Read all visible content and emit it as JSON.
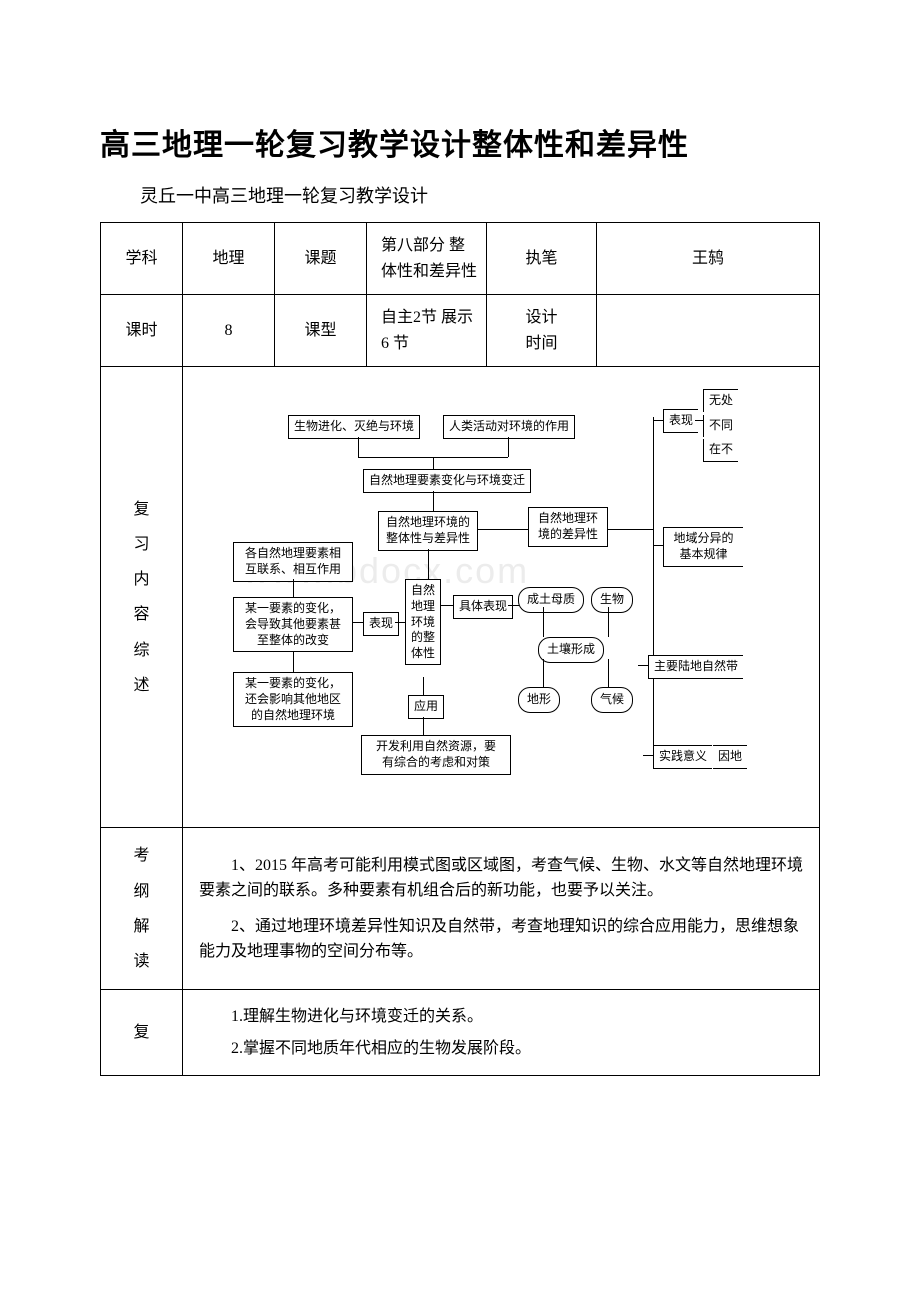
{
  "title": "高三地理一轮复习教学设计整体性和差异性",
  "subtitle": "灵丘一中高三地理一轮复习教学设计",
  "row1": {
    "c1": "学科",
    "c2": "地理",
    "c3": "课题",
    "c4": "第八部分 整体性和差异性",
    "c5": "执笔",
    "c6": "王鸫"
  },
  "row2": {
    "c1": "课时",
    "c2": "8",
    "c3": "课型",
    "c4": "自主2节 展示6 节",
    "c5a": "设计",
    "c5b": "时间",
    "c6": ""
  },
  "row3": {
    "label_chars": [
      "复",
      "习",
      "内",
      "容",
      "综",
      "述"
    ]
  },
  "row4": {
    "label_chars": [
      "考",
      "纲",
      "解",
      "读"
    ],
    "p1": "　　1、2015 年高考可能利用模式图或区域图，考查气候、生物、水文等自然地理环境要素之间的联系。多种要素有机组合后的新功能，也要予以关注。",
    "p2": "　　2、通过地理环境差异性知识及自然带，考查地理知识的综合应用能力，思维想象能力及地理事物的空间分布等。"
  },
  "row5": {
    "label": "复",
    "p1": "　　1.理解生物进化与环境变迁的关系。",
    "p2": "　　2.掌握不同地质年代相应的生物发展阶段。"
  },
  "diagram": {
    "b_bio_evo": "生物进化、灭绝与环境",
    "b_human": "人类活动对环境的作用",
    "b_change": "自然地理要素变化与环境变迁",
    "b_whole_diff": "自然地理环境的\n整体性与差异性",
    "b_diff_env": "自然地理环\n境的差异性",
    "b_interrelate": "各自然地理要素相\n互联系、相互作用",
    "b_one_change": "某一要素的变化，\n会导致其他要素甚\n至整体的改变",
    "b_one_other": "某一要素的变化，\n还会影响其他地区\n的自然地理环境",
    "b_express": "表现",
    "b_nat_whole": "自然\n地理\n环境\n的整\n体性",
    "b_concrete": "具体表现",
    "b_apply": "应用",
    "b_resource": "开发利用自然资源，要\n有综合的考虑和对策",
    "b_soil_form": "土壤形成",
    "n_parent": "成土母质",
    "n_bio": "生物",
    "n_terrain": "地形",
    "n_climate": "气候",
    "r_express": "表现",
    "r_none": "无处",
    "r_diff": "不同",
    "r_exist": "在不",
    "r_zonal": "地域分异的\n基本规律",
    "r_land": "主要陆地自然带",
    "r_practice": "实践意义",
    "r_cause": "因地",
    "watermark": "www.bdocx.com"
  }
}
